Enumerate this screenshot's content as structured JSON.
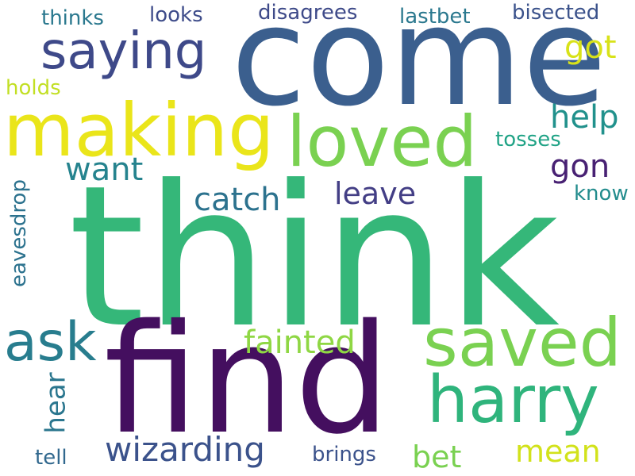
{
  "words": [
    {
      "text": "think",
      "color": "#35b779"
    },
    {
      "text": "come",
      "color": "#3b5f8e"
    },
    {
      "text": "find",
      "color": "#440f5f"
    },
    {
      "text": "making",
      "color": "#eae51a"
    },
    {
      "text": "loved",
      "color": "#7ad151"
    },
    {
      "text": "saying",
      "color": "#3e4989"
    },
    {
      "text": "saved",
      "color": "#7ad151"
    },
    {
      "text": "harry",
      "color": "#2fb47c"
    },
    {
      "text": "ask",
      "color": "#287d8e"
    },
    {
      "text": "fainted",
      "color": "#8fd744"
    },
    {
      "text": "wizarding",
      "color": "#3b528b"
    },
    {
      "text": "catch",
      "color": "#2c728e"
    },
    {
      "text": "leave",
      "color": "#433e85"
    },
    {
      "text": "want",
      "color": "#25838e"
    },
    {
      "text": "help",
      "color": "#21918c"
    },
    {
      "text": "gon",
      "color": "#482173"
    },
    {
      "text": "got",
      "color": "#d8e219"
    },
    {
      "text": "mean",
      "color": "#d2e21b"
    },
    {
      "text": "bet",
      "color": "#7ad151"
    },
    {
      "text": "hear",
      "color": "#2a768e"
    },
    {
      "text": "eavesdrop",
      "color": "#2c728e"
    },
    {
      "text": "disagrees",
      "color": "#3e4a89"
    },
    {
      "text": "lastbet",
      "color": "#2a788e"
    },
    {
      "text": "bisected",
      "color": "#3b528b"
    },
    {
      "text": "looks",
      "color": "#3e4c8a"
    },
    {
      "text": "thinks",
      "color": "#2a788e"
    },
    {
      "text": "holds",
      "color": "#c2df23"
    },
    {
      "text": "tosses",
      "color": "#20a386"
    },
    {
      "text": "know",
      "color": "#228c8d"
    },
    {
      "text": "tell",
      "color": "#31688e"
    },
    {
      "text": "brings",
      "color": "#3b528b"
    }
  ]
}
